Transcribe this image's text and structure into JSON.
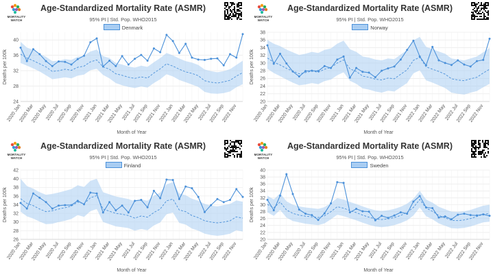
{
  "panels": [
    {
      "title": "Age-Standardized Mortality Rate (ASMR)",
      "subtitle": "95% PI | Std. Pop. WHO2015",
      "logo_text": "MORTALITY WATCH",
      "xlabel": "Month of Year",
      "ylabel": "Deaths per 100k"
    },
    {
      "title": "Age-Standardized Mortality Rate (ASMR)",
      "subtitle": "95% PI | Std. Pop. WHO2015",
      "logo_text": "MORTALITY WATCH",
      "xlabel": "Month of Year",
      "ylabel": "Deaths per 100k"
    },
    {
      "title": "Age-Standardized Mortality Rate (ASMR)",
      "subtitle": "95% PI | Std. Pop. WHO2015",
      "logo_text": "MORTALITY WATCH",
      "xlabel": "Month of Year",
      "ylabel": "Deaths per 100k"
    },
    {
      "title": "Age-Standardized Mortality Rate (ASMR)",
      "subtitle": "95% PI | Std. Pop. WHO2015",
      "logo_text": "MORTALITY WATCH",
      "xlabel": "Month of Year",
      "ylabel": "Deaths per 100k"
    }
  ],
  "chart_data": [
    {
      "type": "line",
      "title": "Age-Standardized Mortality Rate (ASMR)",
      "subtitle": "95% PI | Std. Pop. WHO2015",
      "xlabel": "Month of Year",
      "ylabel": "Deaths per 100k",
      "legend": "top-center",
      "grid": true,
      "x_tick_labels": [
        "2020 Jan",
        "2020 Mar",
        "2020 May",
        "2020 Jul",
        "2020 Sep",
        "2020 Nov",
        "2021 Jan",
        "2021 Mar",
        "2021 May",
        "2021 Jul",
        "2021 Sep",
        "2021 Nov",
        "2022 Jan",
        "2022 Mar",
        "2022 May",
        "2022 Jul",
        "2022 Sep",
        "2022 Nov"
      ],
      "ylim": [
        24,
        42
      ],
      "yticks": [
        24,
        28,
        32,
        36,
        40
      ],
      "series": [
        {
          "name": "Denmark",
          "color": "#4a90d9",
          "values": [
            38.0,
            34.5,
            37.6,
            36.3,
            34.5,
            33.2,
            34.4,
            34.3,
            33.6,
            35.0,
            35.9,
            39.4,
            40.4,
            33.1,
            34.6,
            33.2,
            35.8,
            33.6,
            35.1,
            36.1,
            34.6,
            37.8,
            36.8,
            41.3,
            39.7,
            36.6,
            39.0,
            35.4,
            34.9,
            34.8,
            35.1,
            35.2,
            33.4,
            36.3,
            35.4,
            41.5
          ]
        },
        {
          "name": "Baseline",
          "color": "#4a90d9",
          "values": [
            36.3,
            35.3,
            34.6,
            33.8,
            33.0,
            31.8,
            32.0,
            32.4,
            32.1,
            32.9,
            33.2,
            34.3,
            34.8,
            33.0,
            32.4,
            31.2,
            30.8,
            30.3,
            30.0,
            30.4,
            30.1,
            31.4,
            32.5,
            33.8,
            33.2,
            32.4,
            31.7,
            31.3,
            30.7,
            29.4,
            29.0,
            28.8,
            29.1,
            29.5,
            30.6,
            31.5
          ]
        },
        {
          "name": "95% PI lower",
          "color": "#a9cdf2",
          "values": [
            34.0,
            33.3,
            32.6,
            31.8,
            30.8,
            29.8,
            30.0,
            30.3,
            30.0,
            30.7,
            31.0,
            32.1,
            32.5,
            30.9,
            30.0,
            28.8,
            28.2,
            27.8,
            27.5,
            27.9,
            27.6,
            28.8,
            29.8,
            31.1,
            30.5,
            29.6,
            29.0,
            28.4,
            27.8,
            26.5,
            26.1,
            26.0,
            26.2,
            26.6,
            27.7,
            28.5
          ]
        },
        {
          "name": "95% PI upper",
          "color": "#a9cdf2",
          "values": [
            39.5,
            38.0,
            37.4,
            36.4,
            35.6,
            34.5,
            34.6,
            35.0,
            34.8,
            35.6,
            35.9,
            37.0,
            37.5,
            35.8,
            35.3,
            34.0,
            33.6,
            33.1,
            32.8,
            33.3,
            33.0,
            34.2,
            35.3,
            36.6,
            36.0,
            35.2,
            34.5,
            34.1,
            33.5,
            32.3,
            31.9,
            31.6,
            31.9,
            32.4,
            33.5,
            34.6
          ]
        }
      ]
    },
    {
      "type": "line",
      "title": "Age-Standardized Mortality Rate (ASMR)",
      "subtitle": "95% PI | Std. Pop. WHO2015",
      "xlabel": "Month of Year",
      "ylabel": "Deaths per 100k",
      "legend": "top-center",
      "grid": true,
      "x_tick_labels": [
        "2020 Jan",
        "2020 Mar",
        "2020 May",
        "2020 Jul",
        "2020 Sep",
        "2020 Nov",
        "2021 Jan",
        "2021 Mar",
        "2021 May",
        "2021 Jul",
        "2021 Sep",
        "2021 Nov",
        "2022 Jan",
        "2022 Mar",
        "2022 May",
        "2022 Jul",
        "2022 Sep",
        "2022 Nov"
      ],
      "ylim": [
        20,
        38
      ],
      "yticks": [
        20,
        22,
        24,
        26,
        28,
        30,
        32,
        34,
        36,
        38
      ],
      "series": [
        {
          "name": "Norway",
          "color": "#4a90d9",
          "values": [
            34.6,
            29.8,
            32.4,
            29.9,
            27.8,
            26.5,
            27.9,
            28.0,
            27.9,
            29.2,
            28.7,
            30.9,
            31.7,
            26.2,
            28.7,
            27.7,
            27.5,
            26.3,
            28.0,
            28.6,
            29.1,
            30.9,
            33.4,
            35.8,
            31.7,
            29.4,
            34.2,
            30.7,
            30.0,
            29.5,
            30.7,
            29.6,
            29.1,
            30.5,
            30.8,
            36.3
          ]
        },
        {
          "name": "Baseline",
          "color": "#4a90d9",
          "values": [
            31.3,
            30.2,
            29.5,
            28.6,
            27.9,
            27.2,
            27.5,
            27.9,
            27.6,
            28.4,
            28.8,
            30.0,
            30.8,
            28.5,
            27.8,
            26.6,
            26.3,
            25.8,
            25.6,
            26.1,
            25.9,
            27.1,
            28.2,
            30.7,
            31.5,
            29.0,
            28.4,
            27.8,
            27.1,
            25.9,
            25.6,
            25.4,
            25.9,
            26.3,
            27.4,
            28.4
          ]
        },
        {
          "name": "95% PI lower",
          "color": "#a9cdf2",
          "values": [
            28.5,
            27.4,
            26.6,
            25.7,
            24.9,
            24.2,
            24.4,
            24.8,
            24.5,
            25.3,
            25.7,
            26.8,
            27.6,
            25.4,
            24.6,
            23.4,
            23.1,
            22.6,
            22.3,
            22.8,
            22.6,
            23.7,
            24.8,
            27.3,
            28.1,
            25.5,
            24.9,
            24.2,
            23.5,
            22.3,
            22.0,
            21.8,
            22.3,
            22.7,
            23.7,
            24.6
          ]
        },
        {
          "name": "95% PI upper",
          "color": "#a9cdf2",
          "values": [
            36.0,
            35.0,
            34.4,
            33.5,
            32.8,
            32.1,
            32.4,
            32.9,
            32.6,
            33.4,
            33.8,
            35.0,
            35.8,
            33.6,
            32.9,
            31.7,
            31.4,
            30.9,
            30.7,
            31.2,
            31.0,
            32.2,
            33.4,
            35.9,
            36.8,
            34.2,
            33.6,
            33.0,
            32.4,
            31.2,
            30.9,
            30.7,
            31.2,
            31.7,
            32.8,
            33.9
          ]
        }
      ]
    },
    {
      "type": "line",
      "title": "Age-Standardized Mortality Rate (ASMR)",
      "subtitle": "95% PI | Std. Pop. WHO2015",
      "xlabel": "Month of Year",
      "ylabel": "Deaths per 100k",
      "legend": "top-center",
      "grid": true,
      "x_tick_labels": [
        "2020 Jan",
        "2020 Mar",
        "2020 May",
        "2020 Jul",
        "2020 Sep",
        "2020 Nov",
        "2021 Jan",
        "2021 Mar",
        "2021 May",
        "2021 Jul",
        "2021 Sep",
        "2021 Nov",
        "2022 Jan",
        "2022 Mar",
        "2022 May",
        "2022 Jul",
        "2022 Sep",
        "2022 Nov"
      ],
      "ylim": [
        26,
        42
      ],
      "yticks": [
        26,
        28,
        30,
        32,
        34,
        36,
        38,
        40,
        42
      ],
      "series": [
        {
          "name": "Finland",
          "color": "#4a90d9",
          "values": [
            34.4,
            33.1,
            36.6,
            35.6,
            34.6,
            33.1,
            33.8,
            33.9,
            33.9,
            34.9,
            34.1,
            36.8,
            36.6,
            32.2,
            34.6,
            32.7,
            33.8,
            32.2,
            34.9,
            35.1,
            33.4,
            37.2,
            35.5,
            39.8,
            39.7,
            35.3,
            38.2,
            37.8,
            35.8,
            32.3,
            33.9,
            35.3,
            34.6,
            35.1,
            37.6,
            35.8
          ]
        },
        {
          "name": "Baseline",
          "color": "#4a90d9",
          "values": [
            35.4,
            34.3,
            33.8,
            33.0,
            32.4,
            32.6,
            33.0,
            33.3,
            33.7,
            34.6,
            34.2,
            35.6,
            36.1,
            33.0,
            32.5,
            32.0,
            31.8,
            31.5,
            30.9,
            31.4,
            31.1,
            32.2,
            33.0,
            34.9,
            35.3,
            32.8,
            32.4,
            31.5,
            31.0,
            30.3,
            30.0,
            29.8,
            30.0,
            30.3,
            31.2,
            30.9
          ]
        },
        {
          "name": "95% PI lower",
          "color": "#a9cdf2",
          "values": [
            32.4,
            31.3,
            30.8,
            30.1,
            29.5,
            29.6,
            30.0,
            30.3,
            30.7,
            31.6,
            31.2,
            32.5,
            33.0,
            30.0,
            29.5,
            29.0,
            28.8,
            28.6,
            28.0,
            28.4,
            28.1,
            29.2,
            29.9,
            31.8,
            32.2,
            29.8,
            29.4,
            28.5,
            28.0,
            27.3,
            27.0,
            26.8,
            27.0,
            27.3,
            28.1,
            27.8
          ]
        },
        {
          "name": "95% PI upper",
          "color": "#a9cdf2",
          "values": [
            40.0,
            38.3,
            37.7,
            36.9,
            36.3,
            36.5,
            36.8,
            37.2,
            37.6,
            38.5,
            38.1,
            39.5,
            40.0,
            36.9,
            36.4,
            35.9,
            35.6,
            35.3,
            34.8,
            35.2,
            34.9,
            36.1,
            36.8,
            38.7,
            39.2,
            36.6,
            36.2,
            35.4,
            34.9,
            34.2,
            33.8,
            33.6,
            33.9,
            34.2,
            35.0,
            34.7
          ]
        }
      ]
    },
    {
      "type": "line",
      "title": "Age-Standardized Mortality Rate (ASMR)",
      "subtitle": "95% PI | Std. Pop. WHO2015",
      "xlabel": "Month of Year",
      "ylabel": "Deaths per 100k",
      "legend": "top-center",
      "grid": true,
      "x_tick_labels": [
        "2020 Jan",
        "2020 Mar",
        "2020 May",
        "2020 Jul",
        "2020 Sep",
        "2020 Nov",
        "2021 Jan",
        "2021 Mar",
        "2021 May",
        "2021 Jul",
        "2021 Sep",
        "2021 Nov",
        "2022 Jan",
        "2022 Mar",
        "2022 May",
        "2022 Jul",
        "2022 Sep",
        "2022 Nov"
      ],
      "ylim": [
        20,
        40
      ],
      "yticks": [
        20,
        22,
        24,
        26,
        28,
        30,
        32,
        34,
        36,
        38,
        40
      ],
      "series": [
        {
          "name": "Sweden",
          "color": "#4a90d9",
          "values": [
            31.4,
            28.4,
            32.6,
            38.8,
            33.1,
            28.6,
            27.4,
            27.0,
            25.6,
            27.5,
            30.4,
            36.5,
            36.3,
            27.8,
            28.8,
            28.1,
            28.0,
            25.5,
            26.8,
            26.2,
            26.9,
            27.8,
            27.4,
            30.9,
            32.5,
            29.2,
            29.0,
            26.3,
            26.6,
            25.8,
            27.1,
            27.4,
            27.0,
            26.9,
            27.2,
            26.8
          ]
        },
        {
          "name": "Baseline",
          "color": "#4a90d9",
          "values": [
            30.1,
            29.1,
            30.8,
            28.5,
            27.5,
            27.0,
            26.7,
            26.5,
            26.3,
            26.8,
            28.0,
            29.4,
            29.0,
            28.3,
            27.7,
            27.0,
            26.4,
            25.9,
            25.7,
            25.9,
            26.3,
            26.9,
            27.8,
            29.2,
            31.5,
            29.0,
            28.1,
            26.9,
            26.2,
            25.5,
            25.4,
            25.6,
            26.0,
            26.6,
            27.2,
            27.5
          ]
        },
        {
          "name": "95% PI lower",
          "color": "#a9cdf2",
          "values": [
            27.8,
            26.8,
            28.5,
            26.3,
            25.3,
            24.9,
            24.5,
            24.3,
            24.1,
            24.6,
            25.8,
            27.1,
            26.7,
            26.1,
            25.5,
            24.8,
            24.2,
            23.7,
            23.5,
            23.7,
            24.1,
            24.7,
            25.5,
            26.9,
            29.2,
            26.7,
            25.8,
            24.6,
            23.9,
            23.2,
            23.1,
            23.3,
            23.7,
            24.3,
            24.9,
            25.1
          ]
        },
        {
          "name": "95% PI upper",
          "color": "#a9cdf2",
          "values": [
            32.6,
            31.5,
            33.3,
            31.0,
            30.0,
            29.5,
            29.2,
            29.0,
            28.8,
            29.3,
            30.5,
            31.9,
            31.5,
            30.8,
            30.2,
            29.5,
            28.9,
            28.4,
            28.2,
            28.4,
            28.8,
            29.4,
            30.3,
            31.7,
            34.0,
            31.5,
            30.6,
            29.4,
            28.7,
            28.0,
            27.9,
            28.1,
            28.5,
            29.1,
            29.7,
            30.0
          ]
        }
      ]
    }
  ]
}
